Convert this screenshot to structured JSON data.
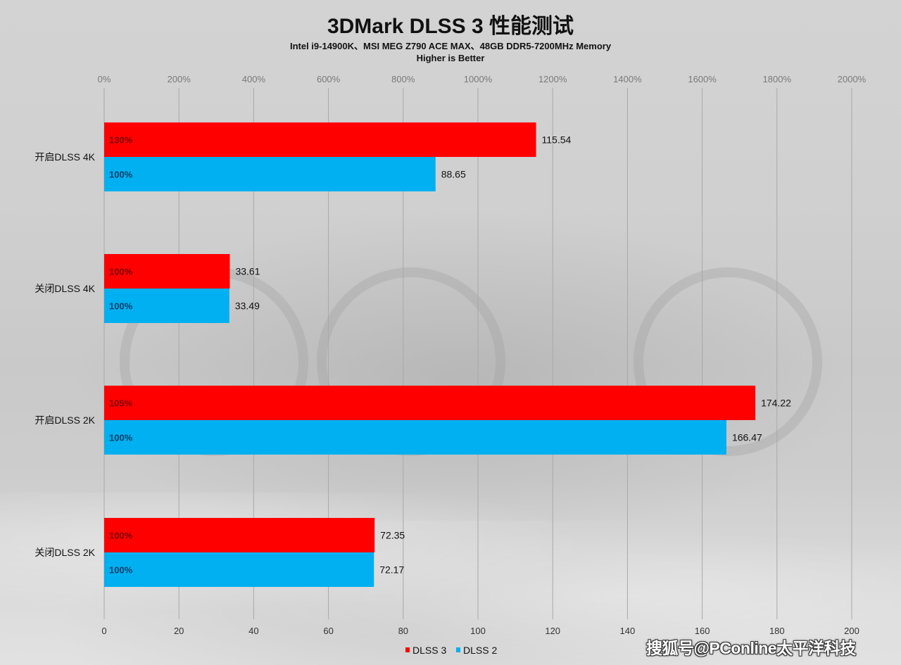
{
  "chart_data": {
    "type": "bar",
    "orientation": "horizontal",
    "title": "3DMark DLSS 3 性能测试",
    "subtitle": "Intel i9-14900K、MSI MEG Z790 ACE MAX、48GB DDR5-7200MHz Memory",
    "note": "Higher is Better",
    "categories": [
      "开启DLSS 4K",
      "关闭DLSS 4K",
      "开启DLSS 2K",
      "关闭DLSS 2K"
    ],
    "series": [
      {
        "name": "DLSS 3",
        "color": "#ff0000",
        "values": [
          115.54,
          33.61,
          174.22,
          72.35
        ],
        "value_labels": [
          "115.54",
          "33.61",
          "174.22",
          "72.35"
        ],
        "percent_labels": [
          "130%",
          "100%",
          "105%",
          "100%"
        ]
      },
      {
        "name": "DLSS 2",
        "color": "#00b0f0",
        "values": [
          88.65,
          33.49,
          166.47,
          72.17
        ],
        "value_labels": [
          "88.65",
          "33.49",
          "166.47",
          "72.17"
        ],
        "percent_labels": [
          "100%",
          "100%",
          "100%",
          "100%"
        ]
      }
    ],
    "x_axis_bottom": {
      "range": [
        0,
        200
      ],
      "ticks": [
        0,
        20,
        40,
        60,
        80,
        100,
        120,
        140,
        160,
        180,
        200
      ],
      "tick_labels": [
        "0",
        "20",
        "40",
        "60",
        "80",
        "100",
        "120",
        "140",
        "160",
        "180",
        "200"
      ]
    },
    "x_axis_top": {
      "range": [
        0,
        2000
      ],
      "ticks": [
        0,
        200,
        400,
        600,
        800,
        1000,
        1200,
        1400,
        1600,
        1800,
        2000
      ],
      "tick_labels": [
        "0%",
        "200%",
        "400%",
        "600%",
        "800%",
        "1000%",
        "1200%",
        "1400%",
        "1600%",
        "1800%",
        "2000%"
      ]
    },
    "grid": true,
    "legend": {
      "position": "bottom",
      "entries": [
        "DLSS 3",
        "DLSS 2"
      ]
    }
  },
  "watermark": "搜狐号@PConline太平洋科技"
}
